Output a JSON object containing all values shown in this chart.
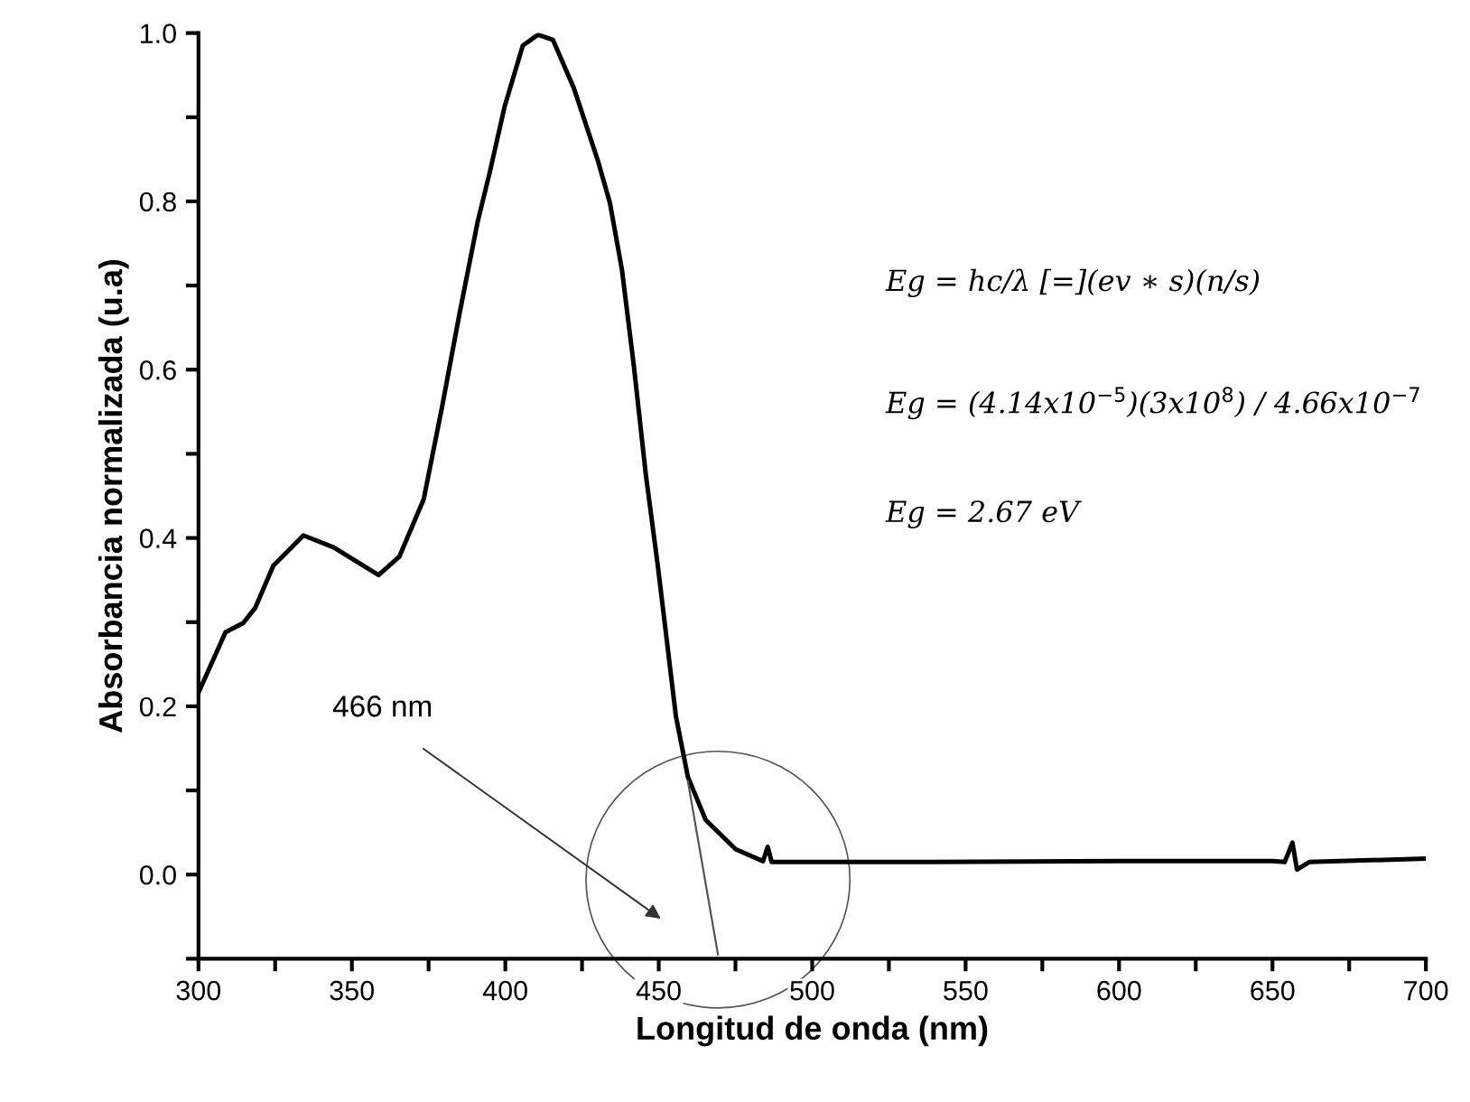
{
  "chart_data": {
    "type": "line",
    "xlabel": "Longitud de onda (nm)",
    "ylabel": "Absorbancia normalizada (u.a)",
    "series": [
      {
        "color": "#000000",
        "x": [
          300,
          308.8,
          314.6,
          318.5,
          324.4,
          334.2,
          344,
          358.7,
          365.5,
          373.4,
          379.3,
          385.2,
          391,
          394.9,
          399.8,
          405.7,
          410.6,
          415.5,
          422.3,
          430.2,
          434.1,
          438,
          441.9,
          445.8,
          449.7,
          455.6,
          459.5,
          465.3,
          475.1,
          484,
          485.5,
          486.8,
          540,
          600,
          650,
          654,
          656.5,
          658,
          662,
          700
        ],
        "values": [
          0.216,
          0.288,
          0.299,
          0.317,
          0.367,
          0.403,
          0.389,
          0.356,
          0.378,
          0.446,
          0.554,
          0.669,
          0.776,
          0.834,
          0.913,
          0.985,
          0.998,
          0.992,
          0.935,
          0.848,
          0.798,
          0.719,
          0.604,
          0.475,
          0.367,
          0.188,
          0.116,
          0.065,
          0.03,
          0.016,
          0.033,
          0.015,
          0.015,
          0.016,
          0.016,
          0.015,
          0.038,
          0.006,
          0.015,
          0.019
        ]
      },
      {
        "type": "line",
        "color": "#555555",
        "x": [
          459.5,
          469.3
        ],
        "values": [
          0.111,
          -0.095
        ]
      }
    ],
    "xlim": [
      300,
      700
    ],
    "ylim": [
      -0.1,
      1.0
    ],
    "xticks": [
      300,
      {
        "value": 325,
        "label": null
      },
      350,
      {
        "value": 375,
        "label": null
      },
      400,
      {
        "value": 425,
        "label": null
      },
      450,
      {
        "value": 475,
        "label": null
      },
      500,
      {
        "value": 525,
        "label": null
      },
      550,
      {
        "value": 575,
        "label": null
      },
      600,
      {
        "value": 625,
        "label": null
      },
      650,
      {
        "value": 675,
        "label": null
      },
      700
    ],
    "yticks": [
      {
        "value": -0.1,
        "label": null
      },
      {
        "value": 0.0,
        "label": "0.0"
      },
      {
        "value": 0.1,
        "label": null
      },
      0.2,
      {
        "value": 0.3,
        "label": null
      },
      0.4,
      {
        "value": 0.5,
        "label": null
      },
      0.6,
      {
        "value": 0.7,
        "label": null
      },
      0.8,
      {
        "value": 0.9,
        "label": null
      },
      {
        "value": 1.0,
        "label": "1.0"
      }
    ],
    "grid": false,
    "legend": false,
    "annotations": [
      "466 nm",
      "Eg = hc/λ [=](ev ∗ s)(n/s)",
      "Eg = (4.14x10$^{−5}$)(3x10$^{8}$) / 4.66x10$^{−7}$",
      "Eg = 2.67 eV"
    ]
  }
}
